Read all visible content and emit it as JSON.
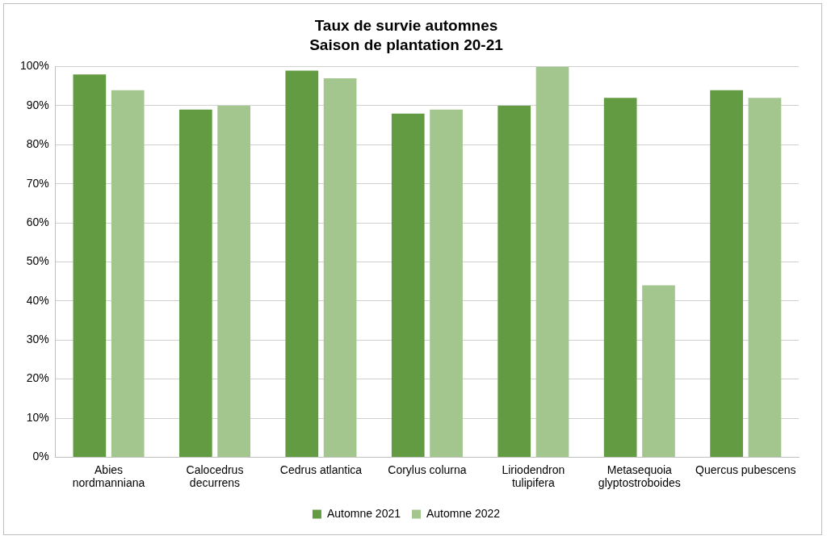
{
  "chart_data": {
    "type": "bar",
    "title": "Taux de survie automnes",
    "subtitle": "Saison de plantation 20-21",
    "categories": [
      "Abies nordmanniana",
      "Calocedrus decurrens",
      "Cedrus atlantica",
      "Corylus colurna",
      "Liriodendron tulipifera",
      "Metasequoia glyptostroboides",
      "Quercus pubescens"
    ],
    "series": [
      {
        "name": "Automne 2021",
        "color": "#629b41",
        "values": [
          98,
          89,
          99,
          88,
          90,
          92,
          94
        ]
      },
      {
        "name": "Automne 2022",
        "color": "#a3c58e",
        "values": [
          94,
          90,
          97,
          89,
          100,
          44,
          92
        ]
      }
    ],
    "ylim": [
      0,
      100
    ],
    "yticks": [
      {
        "value": 0,
        "label": "0%"
      },
      {
        "value": 10,
        "label": "10%"
      },
      {
        "value": 20,
        "label": "20%"
      },
      {
        "value": 30,
        "label": "30%"
      },
      {
        "value": 40,
        "label": "40%"
      },
      {
        "value": 50,
        "label": "50%"
      },
      {
        "value": 60,
        "label": "60%"
      },
      {
        "value": 70,
        "label": "70%"
      },
      {
        "value": 80,
        "label": "80%"
      },
      {
        "value": 90,
        "label": "90%"
      },
      {
        "value": 100,
        "label": "100%"
      }
    ],
    "grid": true,
    "legend": "bottom"
  }
}
